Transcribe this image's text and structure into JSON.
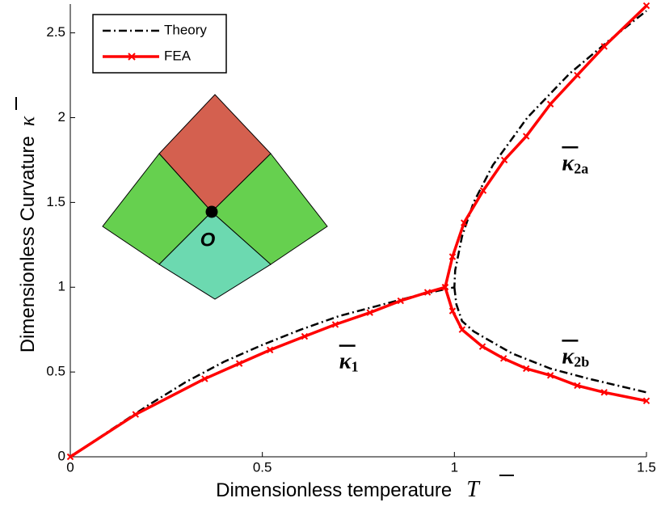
{
  "chart_data": {
    "type": "line",
    "xlabel": {
      "text": "Dimensionless temperature",
      "symbol": "T"
    },
    "ylabel": {
      "text": "Dimensionless Curvature",
      "symbol": "κ"
    },
    "xlim": [
      0,
      1.5
    ],
    "ylim": [
      0,
      2.67
    ],
    "xticks": [
      0,
      0.5,
      1,
      1.5
    ],
    "yticks": [
      0,
      0.5,
      1,
      1.5,
      2,
      2.5
    ],
    "series": [
      {
        "name": "Theory",
        "color": "#000000",
        "style": "dashdot",
        "x": [
          0,
          0.1,
          0.2,
          0.3,
          0.4,
          0.5,
          0.6,
          0.7,
          0.8,
          0.9,
          1.0,
          1.002,
          1.02,
          1.05,
          1.1,
          1.19,
          1.3,
          1.4,
          1.5,
          null,
          1.0,
          1.005,
          1.02,
          1.05,
          1.08,
          1.15,
          1.25,
          1.35,
          1.5
        ],
        "values": [
          0,
          0.15,
          0.3,
          0.44,
          0.56,
          0.66,
          0.75,
          0.83,
          0.89,
          0.95,
          1.0,
          1.1,
          1.3,
          1.5,
          1.72,
          2.0,
          2.26,
          2.45,
          2.63,
          null,
          1.0,
          0.9,
          0.8,
          0.74,
          0.7,
          0.61,
          0.52,
          0.46,
          0.38
        ]
      },
      {
        "name": "FEA",
        "color": "#ff0000",
        "style": "solid",
        "marker": "x",
        "x": [
          0,
          0.17,
          0.35,
          0.44,
          0.52,
          0.61,
          0.69,
          0.78,
          0.86,
          0.93,
          0.976,
          0.995,
          1.025,
          1.075,
          1.13,
          1.187,
          1.25,
          1.32,
          1.39,
          1.5,
          null,
          0.976,
          0.995,
          1.02,
          1.073,
          1.128,
          1.187,
          1.25,
          1.32,
          1.39,
          1.5
        ],
        "values": [
          0,
          0.25,
          0.46,
          0.55,
          0.63,
          0.71,
          0.78,
          0.85,
          0.92,
          0.97,
          1.0,
          1.18,
          1.38,
          1.57,
          1.75,
          1.89,
          2.08,
          2.25,
          2.42,
          2.66,
          null,
          1.0,
          0.86,
          0.75,
          0.65,
          0.58,
          0.52,
          0.48,
          0.42,
          0.38,
          0.33
        ]
      }
    ],
    "annotations": [
      {
        "symbol": "κ",
        "subscript": "1",
        "x": 0.7,
        "y": 0.55
      },
      {
        "symbol": "κ",
        "subscript": "2a",
        "x": 1.28,
        "y": 1.72
      },
      {
        "symbol": "κ",
        "subscript": "2b",
        "x": 1.28,
        "y": 0.58
      }
    ],
    "inset_point": "O",
    "legend": "upper left"
  }
}
